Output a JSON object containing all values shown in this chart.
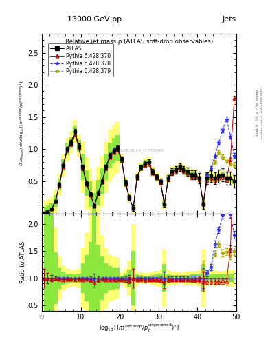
{
  "header_left": "13000 GeV pp",
  "header_right": "Jets",
  "plot_title": "Relative jet mass ρ (ATLAS soft-drop observables)",
  "ylabel_ratio": "Ratio to ATLAS",
  "right_label1": "Rivet 3.1.10; ≥ 2.3M events",
  "right_label2": "mcplots.cern.ch [arXiv:1306.3436]",
  "watermark": "ATLAS 2019_I1772062",
  "xlim": [
    0,
    50
  ],
  "ylim_main": [
    0,
    2.8
  ],
  "ylim_ratio": [
    0.4,
    2.2
  ],
  "x_ticks": [
    0,
    10,
    20,
    30,
    40,
    50
  ],
  "y_ticks_main": [
    0.5,
    1.0,
    1.5,
    2.0,
    2.5
  ],
  "y_ticks_ratio": [
    0.5,
    1.0,
    1.5,
    2.0
  ],
  "legend_labels": [
    "ATLAS",
    "Pythia 6.428 370",
    "Pythia 6.428 378",
    "Pythia 6.428 379"
  ],
  "atlas_color": "#000000",
  "py370_color": "#cc0000",
  "py378_color": "#3333ff",
  "py379_color": "#aaaa00",
  "yellow_color": "#ffff00",
  "green_color": "#00cc00",
  "x_data": [
    0.5,
    1.5,
    2.5,
    3.5,
    4.5,
    5.5,
    6.5,
    7.5,
    8.5,
    9.5,
    10.5,
    11.5,
    12.5,
    13.5,
    14.5,
    15.5,
    16.5,
    17.5,
    18.5,
    19.5,
    20.5,
    21.5,
    22.5,
    23.5,
    24.5,
    25.5,
    26.5,
    27.5,
    28.5,
    29.5,
    30.5,
    31.5,
    32.5,
    33.5,
    34.5,
    35.5,
    36.5,
    37.5,
    38.5,
    39.5,
    40.5,
    41.5,
    42.5,
    43.5,
    44.5,
    45.5,
    46.5,
    47.5,
    48.5,
    49.5
  ],
  "atlas_y": [
    0.01,
    0.03,
    0.07,
    0.19,
    0.45,
    0.75,
    1.0,
    1.1,
    1.27,
    1.05,
    0.72,
    0.47,
    0.3,
    0.12,
    0.32,
    0.5,
    0.72,
    0.9,
    0.98,
    1.02,
    0.85,
    0.48,
    0.25,
    0.08,
    0.57,
    0.72,
    0.78,
    0.8,
    0.65,
    0.57,
    0.5,
    0.15,
    0.55,
    0.65,
    0.68,
    0.72,
    0.68,
    0.65,
    0.6,
    0.6,
    0.55,
    0.15,
    0.55,
    0.58,
    0.55,
    0.58,
    0.6,
    0.55,
    0.55,
    0.5
  ],
  "atlas_yerr": [
    0.005,
    0.008,
    0.012,
    0.02,
    0.03,
    0.04,
    0.04,
    0.04,
    0.04,
    0.04,
    0.04,
    0.03,
    0.03,
    0.03,
    0.03,
    0.03,
    0.04,
    0.04,
    0.04,
    0.04,
    0.04,
    0.04,
    0.04,
    0.04,
    0.04,
    0.04,
    0.04,
    0.04,
    0.04,
    0.04,
    0.04,
    0.05,
    0.05,
    0.05,
    0.06,
    0.06,
    0.06,
    0.06,
    0.07,
    0.07,
    0.08,
    0.08,
    0.09,
    0.09,
    0.09,
    0.1,
    0.1,
    0.1,
    0.1,
    0.1
  ],
  "py370_y": [
    0.01,
    0.03,
    0.07,
    0.19,
    0.44,
    0.73,
    0.98,
    1.08,
    1.23,
    1.03,
    0.7,
    0.46,
    0.29,
    0.11,
    0.31,
    0.49,
    0.7,
    0.87,
    0.95,
    0.99,
    0.82,
    0.46,
    0.24,
    0.08,
    0.55,
    0.7,
    0.75,
    0.77,
    0.63,
    0.55,
    0.48,
    0.14,
    0.53,
    0.63,
    0.66,
    0.7,
    0.66,
    0.63,
    0.58,
    0.58,
    0.53,
    0.14,
    0.52,
    0.55,
    0.52,
    0.55,
    0.57,
    0.52,
    0.85,
    1.8
  ],
  "py378_y": [
    0.01,
    0.03,
    0.07,
    0.19,
    0.45,
    0.75,
    1.0,
    1.1,
    1.27,
    1.05,
    0.72,
    0.47,
    0.3,
    0.12,
    0.32,
    0.5,
    0.72,
    0.9,
    0.98,
    1.02,
    0.85,
    0.48,
    0.25,
    0.08,
    0.57,
    0.72,
    0.78,
    0.8,
    0.65,
    0.57,
    0.5,
    0.15,
    0.55,
    0.65,
    0.68,
    0.72,
    0.68,
    0.65,
    0.6,
    0.6,
    0.55,
    0.15,
    0.6,
    0.7,
    0.9,
    1.1,
    1.3,
    1.47,
    1.2,
    0.9
  ],
  "py379_y": [
    0.01,
    0.03,
    0.07,
    0.19,
    0.45,
    0.75,
    1.0,
    1.1,
    1.27,
    1.05,
    0.72,
    0.47,
    0.3,
    0.12,
    0.32,
    0.5,
    0.72,
    0.9,
    0.98,
    1.02,
    0.85,
    0.48,
    0.25,
    0.08,
    0.57,
    0.72,
    0.78,
    0.8,
    0.65,
    0.57,
    0.5,
    0.15,
    0.55,
    0.65,
    0.68,
    0.72,
    0.68,
    0.65,
    0.6,
    0.6,
    0.55,
    0.17,
    0.6,
    0.7,
    0.8,
    0.95,
    0.88,
    0.82,
    0.78,
    0.75
  ],
  "yellow_band_y": [
    0.18,
    0.18,
    0.18,
    0.18,
    0.18,
    0.18,
    0.18,
    0.18,
    0.18,
    0.18,
    0.4,
    0.4,
    0.4,
    0.4,
    0.4,
    0.4,
    0.4,
    0.4,
    0.4,
    0.4,
    0.08,
    0.08,
    0.08,
    0.08,
    0.08,
    0.08,
    0.08,
    0.08,
    0.08,
    0.08,
    0.08,
    0.08,
    0.08,
    0.08,
    0.08,
    0.08,
    0.08,
    0.08,
    0.08,
    0.08,
    0.08,
    0.08,
    0.08,
    0.08,
    0.08,
    0.08,
    0.08,
    0.08,
    0.08,
    0.08
  ],
  "green_band_y": [
    0.09,
    0.09,
    0.09,
    0.09,
    0.09,
    0.09,
    0.09,
    0.09,
    0.09,
    0.09,
    0.2,
    0.2,
    0.2,
    0.2,
    0.2,
    0.2,
    0.2,
    0.2,
    0.2,
    0.2,
    0.04,
    0.04,
    0.04,
    0.04,
    0.04,
    0.04,
    0.04,
    0.04,
    0.04,
    0.04,
    0.04,
    0.04,
    0.04,
    0.04,
    0.04,
    0.04,
    0.04,
    0.04,
    0.04,
    0.04,
    0.04,
    0.04,
    0.04,
    0.04,
    0.04,
    0.04,
    0.04,
    0.04,
    0.04,
    0.04
  ]
}
